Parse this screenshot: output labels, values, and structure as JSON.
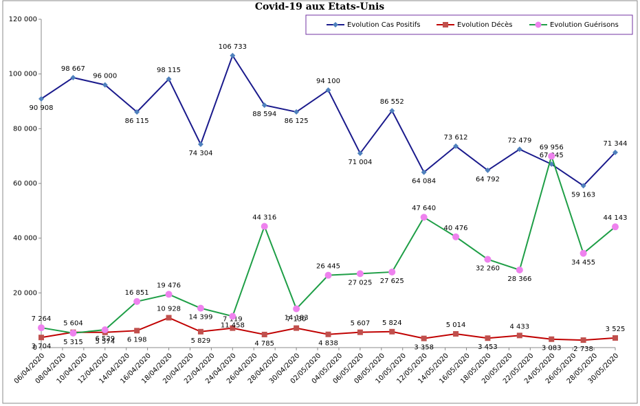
{
  "chart_data": {
    "type": "line",
    "title": "Covid-19 aux Etats-Unis",
    "legend": "top-right",
    "grid": false,
    "x": [
      "06/04/2020",
      "09/04/2020",
      "12/04/2020",
      "15/04/2020",
      "18/04/2020",
      "21/04/2020",
      "24/04/2020",
      "27/04/2020",
      "30/04/2020",
      "03/05/2020",
      "06/05/2020",
      "09/05/2020",
      "12/05/2020",
      "15/05/2020",
      "18/05/2020",
      "21/05/2020",
      "24/05/2020",
      "27/05/2020",
      "30/05/2020"
    ],
    "xlim": [
      "06/04/2020",
      "30/05/2020"
    ],
    "xticks": [
      "06/04/2020",
      "08/04/2020",
      "10/04/2020",
      "12/04/2020",
      "14/04/2020",
      "16/04/2020",
      "18/04/2020",
      "20/04/2020",
      "22/04/2020",
      "24/04/2020",
      "26/04/2020",
      "28/04/2020",
      "30/04/2020",
      "02/05/2020",
      "04/05/2020",
      "06/05/2020",
      "08/05/2020",
      "10/05/2020",
      "12/05/2020",
      "14/05/2020",
      "16/05/2020",
      "18/05/2020",
      "20/05/2020",
      "22/05/2020",
      "24/05/2020",
      "26/05/2020",
      "28/05/2020",
      "30/05/2020"
    ],
    "ylim": [
      0,
      120000
    ],
    "yticks": [
      0,
      {
        "value": 20000,
        "label": "20 000"
      },
      {
        "value": 40000,
        "label": "40 000"
      },
      {
        "value": 60000,
        "label": "60 000"
      },
      {
        "value": 80000,
        "label": "80 000"
      },
      {
        "value": 100000,
        "label": "100 000"
      },
      {
        "value": 120000,
        "label": "120 000"
      }
    ],
    "series": [
      {
        "name": "Evolution Cas Positifs",
        "color": "#1a1a8c",
        "marker_color": "#4f81bd",
        "marker": "diamond",
        "values": [
          90908,
          98667,
          96000,
          86115,
          98115,
          74304,
          106733,
          88594,
          86125,
          94100,
          71004,
          86552,
          64084,
          73612,
          64792,
          72479,
          67045,
          59163,
          71344
        ],
        "value_labels": [
          "90 908",
          "98 667",
          "96 000",
          "86 115",
          "98 115",
          "74 304",
          "106 733",
          "88 594",
          "86 125",
          "94 100",
          "71 004",
          "86 552",
          "64 084",
          "73 612",
          "64 792",
          "72 479",
          "67 045",
          "59 163",
          "71 344"
        ]
      },
      {
        "name": "Evolution Décès",
        "color": "#c00000",
        "marker_color": "#c0504d",
        "marker": "square",
        "values": [
          3704,
          5604,
          5574,
          6198,
          10928,
          5829,
          7119,
          4785,
          7130,
          4838,
          5607,
          5824,
          3358,
          5014,
          3453,
          4433,
          3083,
          2738,
          3525
        ],
        "value_labels": [
          "3 704",
          "5 604",
          "5 574",
          "6 198",
          "10 928",
          "5 829",
          "7 119",
          "4 785",
          "7 130",
          "4 838",
          "5 607",
          "5 824",
          "3 358",
          "5 014",
          "3 453",
          "4 433",
          "3 083",
          "2 738",
          "3 525"
        ]
      },
      {
        "name": "Evolution Guérisons",
        "color": "#1e9e46",
        "marker_color": "#ee82ee",
        "marker": "circle",
        "values": [
          7264,
          5315,
          6529,
          16851,
          19476,
          14399,
          11458,
          44316,
          14183,
          26445,
          27025,
          27625,
          47640,
          40476,
          32260,
          28366,
          69956,
          34455,
          44143
        ],
        "value_labels": [
          "7 264",
          "5 315",
          "6 529",
          "16 851",
          "19 476",
          "14 399",
          "11 458",
          "44 316",
          "14 183",
          "26 445",
          "27 025",
          "27 625",
          "47 640",
          "40 476",
          "32 260",
          "28 366",
          "69 956",
          "34 455",
          "44 143"
        ]
      }
    ]
  }
}
